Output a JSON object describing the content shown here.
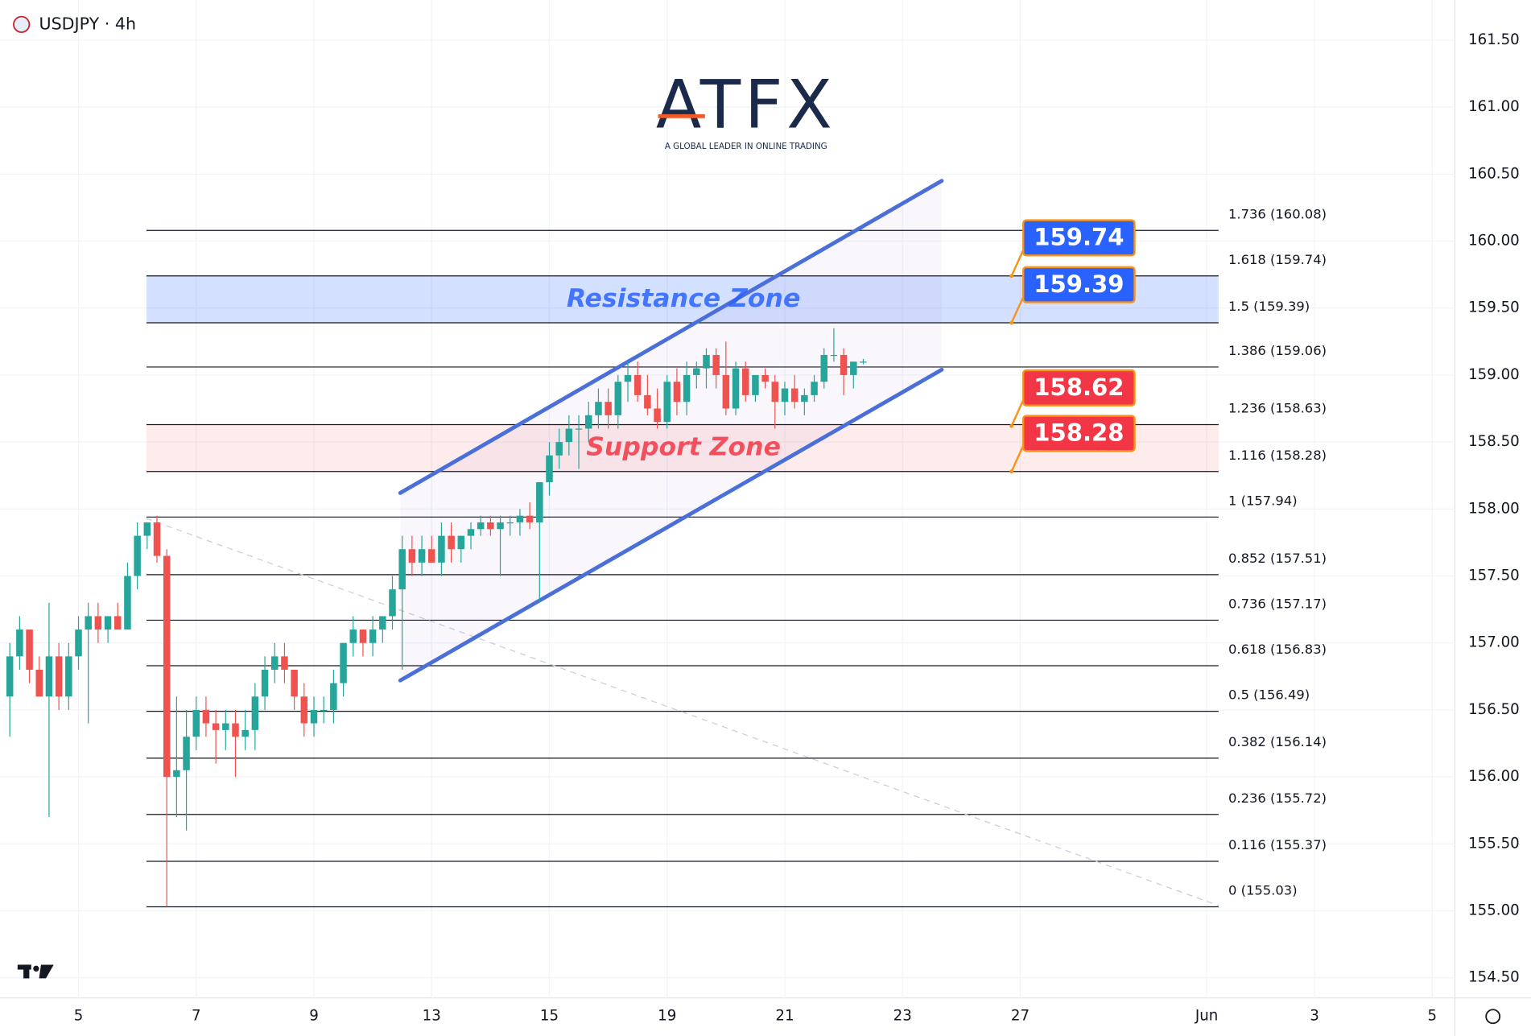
{
  "chart_data": {
    "type": "candlestick",
    "title": "USDJPY · 4h",
    "logo": {
      "name": "ATFX",
      "tagline": "A GLOBAL LEADER IN ONLINE TRADING"
    },
    "up_color": "#26a69a",
    "down_color": "#ef5350",
    "open": [
      156.6,
      156.9,
      157.1,
      156.8,
      156.6,
      156.9,
      156.6,
      156.9,
      157.1,
      157.2,
      157.1,
      157.2,
      157.1,
      157.5,
      157.8,
      157.9,
      157.65,
      156.0,
      156.05,
      156.3,
      156.5,
      156.4,
      156.35,
      156.4,
      156.3,
      156.35,
      156.6,
      156.8,
      156.9,
      156.8,
      156.6,
      156.4,
      156.5,
      156.5,
      156.7,
      157.0,
      157.1,
      157.0,
      157.1,
      157.2,
      157.4,
      157.7,
      157.6,
      157.7,
      157.6,
      157.8,
      157.7,
      157.8,
      157.85,
      157.9,
      157.85,
      157.9,
      157.9,
      157.95,
      157.9,
      158.2,
      158.4,
      158.5,
      158.6,
      158.6,
      158.7,
      158.8,
      158.7,
      158.95,
      159.0,
      158.85,
      158.75,
      158.65,
      158.95,
      158.8,
      159.0,
      159.05,
      159.15,
      159.0,
      158.75,
      159.05,
      158.85,
      159.0,
      158.95,
      158.8,
      158.9,
      158.8,
      158.85,
      158.95,
      159.15,
      159.15,
      159.0,
      159.1
    ],
    "high": [
      157.0,
      157.2,
      157.1,
      156.9,
      157.3,
      157.0,
      157.0,
      157.2,
      157.3,
      157.3,
      157.2,
      157.3,
      157.6,
      157.9,
      157.9,
      157.95,
      157.7,
      156.6,
      156.5,
      156.6,
      156.6,
      156.5,
      156.5,
      156.5,
      156.5,
      156.7,
      156.9,
      157.0,
      157.0,
      156.8,
      156.7,
      156.6,
      156.6,
      156.8,
      157.0,
      157.2,
      157.1,
      157.2,
      157.2,
      157.5,
      157.8,
      157.8,
      157.8,
      157.8,
      157.9,
      157.9,
      157.8,
      157.9,
      157.95,
      157.95,
      157.95,
      157.95,
      158.0,
      158.05,
      158.2,
      158.5,
      158.6,
      158.7,
      158.7,
      158.8,
      158.9,
      158.9,
      159.0,
      159.1,
      159.1,
      159.0,
      158.9,
      159.0,
      159.05,
      159.1,
      159.1,
      159.2,
      159.2,
      159.25,
      159.1,
      159.1,
      159.0,
      159.05,
      159.0,
      158.95,
      159.0,
      158.9,
      159.0,
      159.2,
      159.35,
      159.2,
      159.1,
      159.12
    ],
    "low": [
      156.3,
      156.8,
      156.7,
      156.6,
      155.7,
      156.5,
      156.5,
      156.8,
      156.4,
      157.0,
      157.0,
      157.1,
      157.1,
      157.4,
      157.7,
      157.6,
      155.03,
      155.7,
      155.6,
      156.2,
      156.3,
      156.1,
      156.2,
      156.0,
      156.2,
      156.2,
      156.5,
      156.7,
      156.7,
      156.5,
      156.3,
      156.3,
      156.4,
      156.4,
      156.6,
      156.9,
      156.9,
      156.9,
      157.0,
      157.1,
      156.8,
      157.5,
      157.5,
      157.6,
      157.5,
      157.6,
      157.6,
      157.7,
      157.8,
      157.8,
      157.5,
      157.8,
      157.8,
      157.85,
      157.3,
      158.1,
      158.3,
      158.4,
      158.3,
      158.5,
      158.6,
      158.6,
      158.6,
      158.8,
      158.8,
      158.7,
      158.6,
      158.6,
      158.7,
      158.7,
      158.9,
      158.9,
      158.9,
      158.7,
      158.7,
      158.8,
      158.8,
      158.9,
      158.6,
      158.7,
      158.75,
      158.7,
      158.8,
      158.9,
      159.1,
      158.85,
      158.9,
      159.08
    ],
    "close": [
      156.9,
      157.1,
      156.8,
      156.6,
      156.9,
      156.6,
      156.9,
      157.1,
      157.2,
      157.1,
      157.2,
      157.1,
      157.5,
      157.8,
      157.9,
      157.65,
      156.0,
      156.05,
      156.3,
      156.5,
      156.4,
      156.35,
      156.4,
      156.3,
      156.35,
      156.6,
      156.8,
      156.9,
      156.8,
      156.6,
      156.4,
      156.5,
      156.5,
      156.7,
      157.0,
      157.1,
      157.0,
      157.1,
      157.2,
      157.4,
      157.7,
      157.6,
      157.7,
      157.6,
      157.8,
      157.7,
      157.8,
      157.85,
      157.9,
      157.85,
      157.9,
      157.9,
      157.95,
      157.9,
      158.2,
      158.4,
      158.5,
      158.6,
      158.6,
      158.7,
      158.8,
      158.7,
      158.95,
      159.0,
      158.85,
      158.75,
      158.65,
      158.95,
      158.8,
      159.0,
      159.05,
      159.15,
      159.0,
      158.75,
      159.05,
      158.85,
      159.0,
      158.95,
      158.8,
      158.9,
      158.8,
      158.85,
      158.95,
      159.15,
      159.15,
      159.0,
      159.1,
      159.1
    ],
    "xlim": [
      -1,
      147.3
    ],
    "xticks": [
      {
        "value": 7,
        "label": "5"
      },
      {
        "value": 19,
        "label": "7"
      },
      {
        "value": 31,
        "label": "9"
      },
      {
        "value": 43,
        "label": "13"
      },
      {
        "value": 55,
        "label": "15"
      },
      {
        "value": 67,
        "label": "19"
      },
      {
        "value": 79,
        "label": "21"
      },
      {
        "value": 91,
        "label": "23"
      },
      {
        "value": 103,
        "label": "27"
      },
      {
        "value": 122,
        "label": "Jun"
      },
      {
        "value": 133,
        "label": "3"
      },
      {
        "value": 145,
        "label": "5"
      }
    ],
    "ylim": [
      154.35,
      161.8
    ],
    "yticks": [
      {
        "value": 154.5,
        "label": "154.50"
      },
      {
        "value": 155,
        "label": "155.00"
      },
      {
        "value": 155.5,
        "label": "155.50"
      },
      {
        "value": 156,
        "label": "156.00"
      },
      {
        "value": 156.5,
        "label": "156.50"
      },
      {
        "value": 157,
        "label": "157.00"
      },
      {
        "value": 157.5,
        "label": "157.50"
      },
      {
        "value": 158,
        "label": "158.00"
      },
      {
        "value": 158.5,
        "label": "158.50"
      },
      {
        "value": 159,
        "label": "159.00"
      },
      {
        "value": 159.5,
        "label": "159.50"
      },
      {
        "value": 160,
        "label": "160.00"
      },
      {
        "value": 160.5,
        "label": "160.50"
      },
      {
        "value": 161,
        "label": "161.00"
      },
      {
        "value": 161.5,
        "label": "161.50"
      }
    ],
    "grid": true,
    "fib_levels": [
      {
        "value": 160.08,
        "label": "1.736 (160.08)"
      },
      {
        "value": 159.74,
        "label": "1.618 (159.74)"
      },
      {
        "value": 159.39,
        "label": "1.5 (159.39)"
      },
      {
        "value": 159.06,
        "label": "1.386 (159.06)"
      },
      {
        "value": 158.63,
        "label": "1.236 (158.63)"
      },
      {
        "value": 158.28,
        "label": "1.116 (158.28)"
      },
      {
        "value": 157.94,
        "label": "1 (157.94)"
      },
      {
        "value": 157.51,
        "label": "0.852 (157.51)"
      },
      {
        "value": 157.17,
        "label": "0.736 (157.17)"
      },
      {
        "value": 156.83,
        "label": "0.618 (156.83)"
      },
      {
        "value": 156.49,
        "label": "0.5 (156.49)"
      },
      {
        "value": 156.14,
        "label": "0.382 (156.14)"
      },
      {
        "value": 155.72,
        "label": "0.236 (155.72)"
      },
      {
        "value": 155.37,
        "label": "0.116 (155.37)"
      },
      {
        "value": 155.03,
        "label": "0 (155.03)"
      }
    ],
    "zones": [
      {
        "name": "Resistance Zone",
        "range": [
          159.39,
          159.74
        ],
        "color": "#2962ff"
      },
      {
        "name": "Support Zone",
        "range": [
          158.28,
          158.63
        ],
        "color": "#f23645"
      }
    ],
    "callouts": [
      {
        "value": 159.74,
        "color": "#2962ff"
      },
      {
        "value": 159.39,
        "color": "#2962ff"
      },
      {
        "value": 158.62,
        "color": "#f23645"
      },
      {
        "value": 158.28,
        "color": "#f23645"
      }
    ],
    "channel": {
      "x": [
        39.8,
        95
      ],
      "upper": [
        158.12,
        160.45
      ],
      "lower": [
        156.72,
        159.04
      ],
      "color": "#4a6fd8"
    },
    "trendline": {
      "x": [
        13.9,
        123.2
      ],
      "y": [
        157.93,
        155.04
      ]
    }
  }
}
